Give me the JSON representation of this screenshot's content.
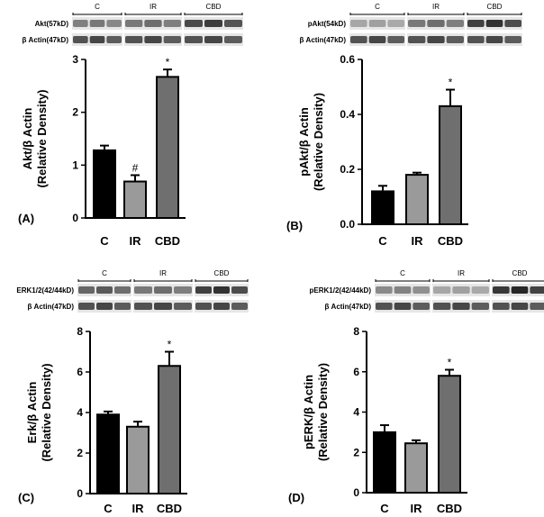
{
  "chart_data": [
    {
      "panel": "(A)",
      "type": "bar",
      "categories": [
        "C",
        "IR",
        "CBD"
      ],
      "values": [
        1.28,
        0.69,
        2.67
      ],
      "errors": [
        0.09,
        0.12,
        0.14
      ],
      "annotations": [
        "",
        "#",
        "*"
      ],
      "ylabel": "Akt/β Actin",
      "ylabel2": "(Relative Density)",
      "ylim": [
        0,
        3
      ],
      "yticks": [
        "0",
        "1",
        "2",
        "3"
      ],
      "blot": {
        "groups": [
          "C",
          "IR",
          "CBD"
        ],
        "rows": [
          {
            "label": "Akt(57kD)",
            "intensity": [
              0.55,
              0.6,
              0.85
            ]
          },
          {
            "label": "β Actin(47kD)",
            "intensity": [
              0.8,
              0.8,
              0.8
            ]
          }
        ]
      }
    },
    {
      "panel": "(B)",
      "type": "bar",
      "categories": [
        "C",
        "IR",
        "CBD"
      ],
      "values": [
        0.12,
        0.18,
        0.43
      ],
      "errors": [
        0.02,
        0.008,
        0.06
      ],
      "annotations": [
        "",
        "",
        "*"
      ],
      "ylabel": "pAkt/β Actin",
      "ylabel2": "(Relative Density)",
      "ylim": [
        0,
        0.6
      ],
      "yticks": [
        "0.0",
        "0.2",
        "0.4",
        "0.6"
      ],
      "blot": {
        "groups": [
          "C",
          "IR",
          "CBD"
        ],
        "rows": [
          {
            "label": "pAkt(54kD)",
            "intensity": [
              0.35,
              0.6,
              0.9
            ]
          },
          {
            "label": "β Actin(47kD)",
            "intensity": [
              0.8,
              0.8,
              0.8
            ]
          }
        ]
      }
    },
    {
      "panel": "(C)",
      "type": "bar",
      "categories": [
        "C",
        "IR",
        "CBD"
      ],
      "values": [
        3.9,
        3.3,
        6.3
      ],
      "errors": [
        0.15,
        0.25,
        0.7
      ],
      "annotations": [
        "",
        "",
        "*"
      ],
      "ylabel": "Erk/β Actin",
      "ylabel2": "(Relative Density)",
      "ylim": [
        0,
        8
      ],
      "yticks": [
        "0",
        "2",
        "4",
        "6",
        "8"
      ],
      "blot": {
        "groups": [
          "C",
          "IR",
          "CBD"
        ],
        "rows": [
          {
            "label": "ERK1/2(42/44kD)",
            "intensity": [
              0.7,
              0.6,
              0.9
            ]
          },
          {
            "label": "β Actin(47kD)",
            "intensity": [
              0.8,
              0.8,
              0.8
            ]
          }
        ]
      }
    },
    {
      "panel": "(D)",
      "type": "bar",
      "categories": [
        "C",
        "IR",
        "CBD"
      ],
      "values": [
        3.0,
        2.45,
        5.8
      ],
      "errors": [
        0.35,
        0.15,
        0.3
      ],
      "annotations": [
        "",
        "",
        "*"
      ],
      "ylabel": "pERK/β Actin",
      "ylabel2": "(Relative Density)",
      "ylim": [
        0,
        8
      ],
      "yticks": [
        "0",
        "2",
        "4",
        "6",
        "8"
      ],
      "blot": {
        "groups": [
          "C",
          "IR",
          "CBD"
        ],
        "rows": [
          {
            "label": "pERK1/2(42/44kD)",
            "intensity": [
              0.5,
              0.35,
              0.95
            ]
          },
          {
            "label": "β Actin(47kD)",
            "intensity": [
              0.8,
              0.8,
              0.8
            ]
          }
        ]
      }
    }
  ],
  "colors": {
    "bar_fills": [
      "#000000",
      "#9a9a9a",
      "#6f6f6f"
    ],
    "band_dark": "#1e1e1e",
    "blot_background": "#e6e6e6"
  }
}
